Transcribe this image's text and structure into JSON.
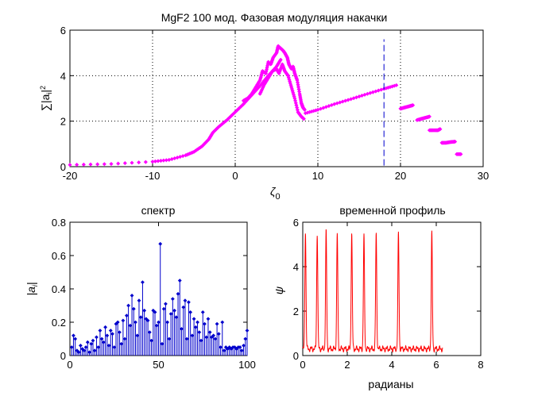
{
  "chart_data": [
    {
      "id": "top",
      "type": "scatter",
      "title": "MgF2 100 мод. Фазовая модуляция накачки",
      "xlabel": "ζ",
      "xlabel_sub": "0",
      "ylabel": "∑|a",
      "ylabel_sub": "i",
      "ylabel_tail": "|",
      "ylabel_sup": "2",
      "xlim": [
        -20,
        30
      ],
      "ylim": [
        0,
        6
      ],
      "xticks": [
        -20,
        -10,
        0,
        10,
        20,
        30
      ],
      "yticks": [
        0,
        2,
        4,
        6
      ],
      "xtick_labels": [
        "-20",
        "-10",
        "0",
        "10",
        "20",
        "30"
      ],
      "ytick_labels": [
        "0",
        "2",
        "4",
        "6"
      ],
      "grid": true,
      "marker_color": "#ff00ff",
      "vline": {
        "x": 18,
        "y0": 0.05,
        "y1": 5.6,
        "color": "#0000cc",
        "style": "dashed"
      },
      "segments": [
        {
          "name": "smooth-rise",
          "points": [
            [
              -20,
              0.08
            ],
            [
              -15,
              0.12
            ],
            [
              -10,
              0.22
            ],
            [
              -8,
              0.3
            ],
            [
              -6,
              0.5
            ],
            [
              -5,
              0.65
            ],
            [
              -4,
              0.9
            ],
            [
              -3.2,
              1.2
            ],
            [
              -2.7,
              1.5
            ],
            [
              -2,
              1.75
            ],
            [
              -1,
              2.05
            ],
            [
              0,
              2.4
            ],
            [
              1,
              2.75
            ],
            [
              2,
              3.15
            ],
            [
              3,
              3.55
            ],
            [
              4,
              4.0
            ],
            [
              5,
              4.4
            ],
            [
              5.5,
              4.7
            ]
          ]
        },
        {
          "name": "chaotic-upper",
          "points": [
            [
              1,
              2.9
            ],
            [
              1.5,
              3.0
            ],
            [
              2,
              3.2
            ],
            [
              2.5,
              3.5
            ],
            [
              3,
              3.8
            ],
            [
              3.3,
              4.2
            ],
            [
              3.7,
              4.1
            ],
            [
              4,
              4.6
            ],
            [
              4.3,
              4.5
            ],
            [
              4.6,
              4.8
            ],
            [
              5,
              5.0
            ],
            [
              5.2,
              5.3
            ],
            [
              5.5,
              5.2
            ],
            [
              5.8,
              5.1
            ],
            [
              6,
              5.0
            ],
            [
              6.3,
              4.8
            ],
            [
              6.5,
              4.5
            ],
            [
              6.8,
              4.3
            ],
            [
              7,
              4.4
            ],
            [
              7.2,
              4.1
            ],
            [
              7.5,
              3.8
            ],
            [
              7.8,
              3.2
            ],
            [
              8,
              2.8
            ],
            [
              8.2,
              2.6
            ],
            [
              8.4,
              2.5
            ]
          ]
        },
        {
          "name": "chaotic-lower",
          "points": [
            [
              3,
              3.2
            ],
            [
              3.5,
              3.6
            ],
            [
              4,
              3.9
            ],
            [
              4.5,
              4.2
            ],
            [
              5,
              4.3
            ],
            [
              5.3,
              4.1
            ],
            [
              5.7,
              4.5
            ],
            [
              6,
              4.2
            ],
            [
              6.4,
              4.0
            ],
            [
              6.8,
              3.5
            ],
            [
              7.2,
              3.0
            ],
            [
              7.6,
              2.4
            ],
            [
              8,
              2.2
            ],
            [
              8.3,
              2.1
            ]
          ]
        },
        {
          "name": "linear-branch",
          "points": [
            [
              8.5,
              2.35
            ],
            [
              10,
              2.5
            ],
            [
              12,
              2.75
            ],
            [
              14,
              2.97
            ],
            [
              16,
              3.2
            ],
            [
              18,
              3.42
            ],
            [
              19.5,
              3.58
            ]
          ]
        },
        {
          "name": "step-1",
          "points": [
            [
              20,
              2.55
            ],
            [
              20.5,
              2.6
            ],
            [
              21,
              2.65
            ],
            [
              21.5,
              2.7
            ]
          ]
        },
        {
          "name": "step-2",
          "points": [
            [
              22,
              2.05
            ],
            [
              22.5,
              2.1
            ],
            [
              23,
              2.15
            ],
            [
              23.5,
              2.2
            ]
          ]
        },
        {
          "name": "step-3",
          "points": [
            [
              23.5,
              1.6
            ],
            [
              24,
              1.6
            ],
            [
              24.5,
              1.6
            ],
            [
              24.8,
              1.65
            ]
          ]
        },
        {
          "name": "step-4",
          "points": [
            [
              25,
              1.05
            ],
            [
              25.5,
              1.05
            ],
            [
              26,
              1.08
            ],
            [
              26.6,
              1.1
            ]
          ]
        },
        {
          "name": "step-5",
          "points": [
            [
              26.8,
              0.55
            ],
            [
              27.3,
              0.55
            ]
          ]
        }
      ]
    },
    {
      "id": "spectrum",
      "type": "bar",
      "title": "спектр",
      "xlabel": "",
      "ylabel": "|a",
      "ylabel_sub": "i",
      "ylabel_tail": "|",
      "xlim": [
        0,
        100
      ],
      "ylim": [
        0,
        0.8
      ],
      "xticks": [
        0,
        50,
        100
      ],
      "yticks": [
        0,
        0.2,
        0.4,
        0.6,
        0.8
      ],
      "xtick_labels": [
        "0",
        "50",
        "100"
      ],
      "ytick_labels": [
        "0",
        "0.2",
        "0.4",
        "0.6",
        "0.8"
      ],
      "grid": false,
      "color": "#0000cc",
      "x": [
        1,
        2,
        3,
        4,
        5,
        6,
        7,
        8,
        9,
        10,
        11,
        12,
        13,
        14,
        15,
        16,
        17,
        18,
        19,
        20,
        21,
        22,
        23,
        24,
        25,
        26,
        27,
        28,
        29,
        30,
        31,
        32,
        33,
        34,
        35,
        36,
        37,
        38,
        39,
        40,
        41,
        42,
        43,
        44,
        45,
        46,
        47,
        48,
        49,
        50,
        51,
        52,
        53,
        54,
        55,
        56,
        57,
        58,
        59,
        60,
        61,
        62,
        63,
        64,
        65,
        66,
        67,
        68,
        69,
        70,
        71,
        72,
        73,
        74,
        75,
        76,
        77,
        78,
        79,
        80,
        81,
        82,
        83,
        84,
        85,
        86,
        87,
        88,
        89,
        90,
        91,
        92,
        93,
        94,
        95,
        96,
        97,
        98,
        99,
        100
      ],
      "values": [
        0.05,
        0.12,
        0.1,
        0.03,
        0.02,
        0.06,
        0.04,
        0.03,
        0.05,
        0.08,
        0.02,
        0.07,
        0.09,
        0.03,
        0.11,
        0.05,
        0.15,
        0.1,
        0.08,
        0.17,
        0.12,
        0.06,
        0.15,
        0.13,
        0.05,
        0.19,
        0.2,
        0.14,
        0.07,
        0.21,
        0.1,
        0.24,
        0.3,
        0.18,
        0.36,
        0.28,
        0.2,
        0.12,
        0.33,
        0.23,
        0.44,
        0.27,
        0.22,
        0.21,
        0.14,
        0.09,
        0.27,
        0.26,
        0.18,
        0.2,
        0.67,
        0.07,
        0.28,
        0.31,
        0.2,
        0.1,
        0.25,
        0.34,
        0.27,
        0.23,
        0.37,
        0.45,
        0.16,
        0.29,
        0.33,
        0.1,
        0.32,
        0.26,
        0.12,
        0.22,
        0.17,
        0.2,
        0.14,
        0.09,
        0.26,
        0.19,
        0.11,
        0.22,
        0.14,
        0.11,
        0.12,
        0.1,
        0.19,
        0.13,
        0.05,
        0.2,
        0.03,
        0.05,
        0.04,
        0.05,
        0.04,
        0.05,
        0.05,
        0.04,
        0.05,
        0.05,
        0.03,
        0.06,
        0.1,
        0.15
      ]
    },
    {
      "id": "profile",
      "type": "line",
      "title": "временной профиль",
      "xlabel": "радианы",
      "ylabel": "ψ",
      "xlim": [
        0,
        8
      ],
      "ylim": [
        0,
        6
      ],
      "xticks": [
        0,
        2,
        4,
        6,
        8
      ],
      "yticks": [
        0,
        2,
        4,
        6
      ],
      "xtick_labels": [
        "0",
        "2",
        "4",
        "6",
        "8"
      ],
      "ytick_labels": [
        "0",
        "2",
        "4",
        "6"
      ],
      "grid": false,
      "color": "#ff0000",
      "x_range": [
        0,
        6.283
      ],
      "baseline": 0.3,
      "peaks": [
        {
          "x": 0.12,
          "height": 5.6
        },
        {
          "x": 0.65,
          "height": 5.5
        },
        {
          "x": 1.05,
          "height": 5.6
        },
        {
          "x": 1.55,
          "height": 5.5
        },
        {
          "x": 2.2,
          "height": 5.5
        },
        {
          "x": 2.75,
          "height": 5.4
        },
        {
          "x": 3.3,
          "height": 5.5
        },
        {
          "x": 4.3,
          "height": 5.5
        },
        {
          "x": 5.8,
          "height": 5.5
        }
      ],
      "peak_width": 0.035
    }
  ]
}
